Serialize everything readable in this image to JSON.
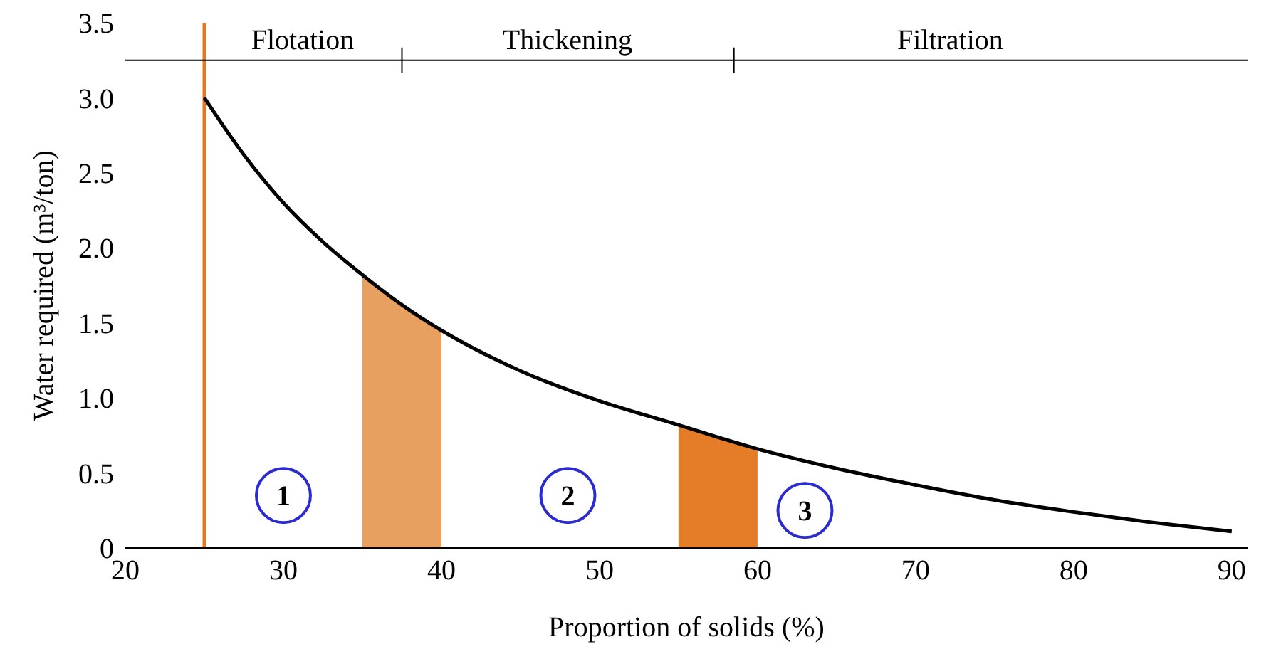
{
  "chart_data": {
    "type": "line",
    "xlabel": "Proportion of solids (%)",
    "ylabel": "Water required (m³/ton)",
    "xlim": [
      20,
      91
    ],
    "xticks": [
      20,
      30,
      40,
      50,
      60,
      70,
      80,
      90
    ],
    "ylim": [
      0,
      3.5
    ],
    "yticks": [
      0,
      {
        "value": 0.5,
        "label": "0.5"
      },
      {
        "value": 1,
        "label": "1.0"
      },
      {
        "value": 1.5,
        "label": "1.5"
      },
      {
        "value": 2,
        "label": "2.0"
      },
      {
        "value": 2.5,
        "label": "2.5"
      },
      {
        "value": 3,
        "label": "3.0"
      },
      {
        "value": 3.5,
        "label": "3.5"
      }
    ],
    "series": [
      {
        "color": "#000000",
        "x": [
          25,
          27.5,
          30,
          32.5,
          35,
          37.5,
          40,
          45,
          50,
          55,
          60,
          65,
          70,
          75,
          80,
          85,
          90
        ],
        "values": [
          3.0,
          2.62,
          2.3,
          2.04,
          1.82,
          1.62,
          1.45,
          1.18,
          0.98,
          0.82,
          0.66,
          0.53,
          0.42,
          0.32,
          0.24,
          0.17,
          0.11
        ]
      },
      {
        "type": "area",
        "color": "#e8a060",
        "x": [
          35,
          37.5,
          40
        ],
        "values": [
          1.82,
          1.62,
          1.45
        ]
      },
      {
        "type": "area",
        "color": "#e47c28",
        "x": [
          55,
          57.5,
          60
        ],
        "values": [
          0.82,
          0.73,
          0.66
        ]
      }
    ],
    "ref_lines": [
      {
        "axis": "x",
        "value": 25,
        "color": "#e87722"
      },
      {
        "axis": "y",
        "value": 3.25,
        "color": "#000000"
      }
    ],
    "annotations": [
      "Flotation",
      "Thickening",
      "Filtration",
      {
        "text": "1",
        "x": 30,
        "y": 0.35
      },
      {
        "text": "2",
        "x": 48,
        "y": 0.35
      },
      {
        "text": "3",
        "x": 63,
        "y": 0.25
      }
    ],
    "marker": "none",
    "legend": false
  }
}
